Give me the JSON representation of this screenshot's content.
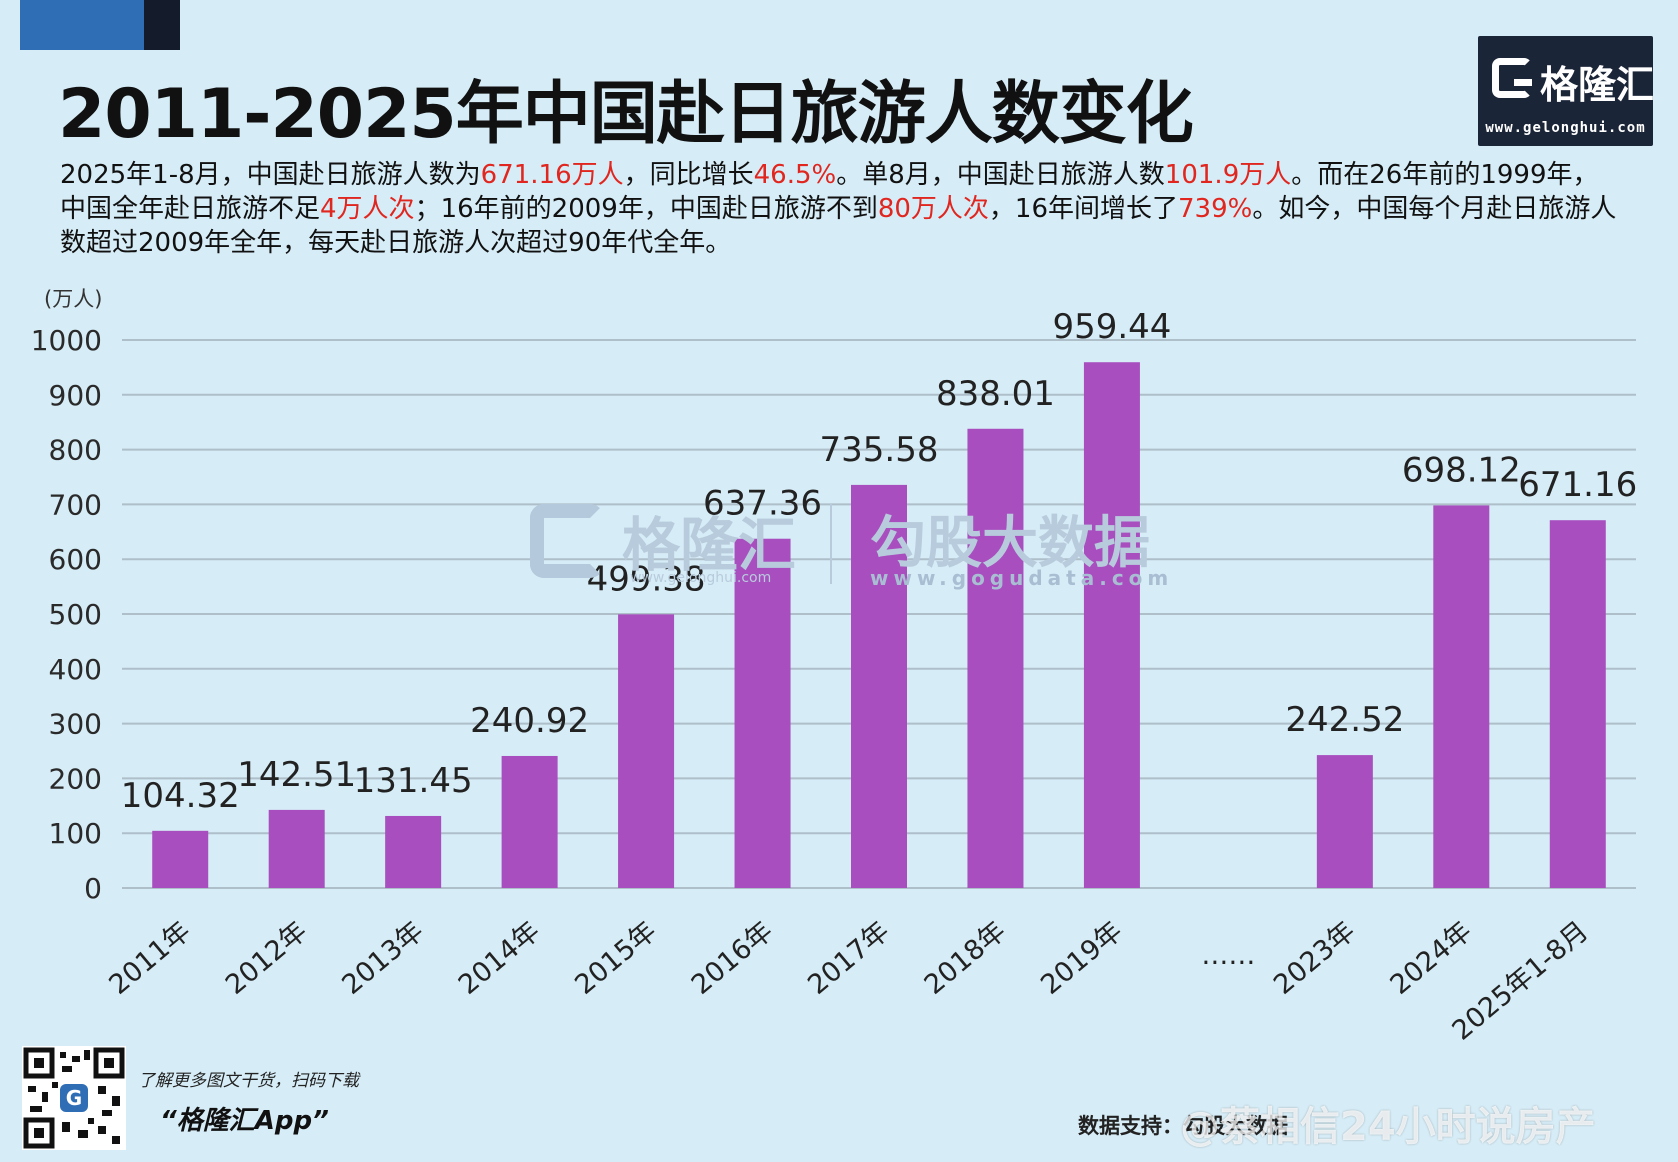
{
  "title": "2011-2025年中国赴日旅游人数变化",
  "brand": {
    "name": "格隆汇",
    "url": "www.gelonghui.com"
  },
  "summary": {
    "t1": "2025年1-8月，中国赴日旅游人数为",
    "h1": "671.16万人",
    "t2": "，同比增长",
    "h2": "46.5%",
    "t3": "。单8月，中国赴日旅游人数",
    "h3": "101.9万人",
    "t4": "。而在26年前的1999年，中国全年赴日旅游不足",
    "h4": "4万人次",
    "t5": "；16年前的2009年，中国赴日旅游不到",
    "h5": "80万人次",
    "t6": "，16年间增长了",
    "h6": "739%",
    "t7": "。如今，中国每个月赴日旅游人数超过2009年全年，每天赴日旅游人次超过90年代全年。"
  },
  "watermark": {
    "name": "格隆汇",
    "name_url": "www.gelonghui.com",
    "name2": "勾股大数据",
    "url": "www.gogudata.com"
  },
  "colors": {
    "bar": "#a84ebf",
    "highlight": "#e0261f",
    "grid": "#aebfca",
    "background": "#d6ecf6"
  },
  "chart_data": {
    "type": "bar",
    "unit": "(万人)",
    "categories": [
      "2011年",
      "2012年",
      "2013年",
      "2014年",
      "2015年",
      "2016年",
      "2017年",
      "2018年",
      "2019年",
      "……",
      "2023年",
      "2024年",
      "2025年1-8月"
    ],
    "values": [
      104.32,
      142.51,
      131.45,
      240.92,
      499.38,
      637.36,
      735.58,
      838.01,
      959.44,
      null,
      242.52,
      698.12,
      671.16
    ],
    "value_labels": [
      "104.32",
      "142.51",
      "131.45",
      "240.92",
      "499.38",
      "637.36",
      "735.58",
      "838.01",
      "959.44",
      "",
      "242.52",
      "698.12",
      "671.16"
    ],
    "yticks": [
      0,
      100,
      200,
      300,
      400,
      500,
      600,
      700,
      800,
      900,
      1000
    ],
    "ylim": [
      0,
      1000
    ],
    "grid": true,
    "legend": "none"
  },
  "footer": {
    "note": "了解更多图文干货，扫码下载",
    "app": "“格隆汇App”",
    "source": "数据支持：勾股大数据",
    "weibo": "@蔡相信24小时说房产",
    "qr_symbol": "G"
  }
}
